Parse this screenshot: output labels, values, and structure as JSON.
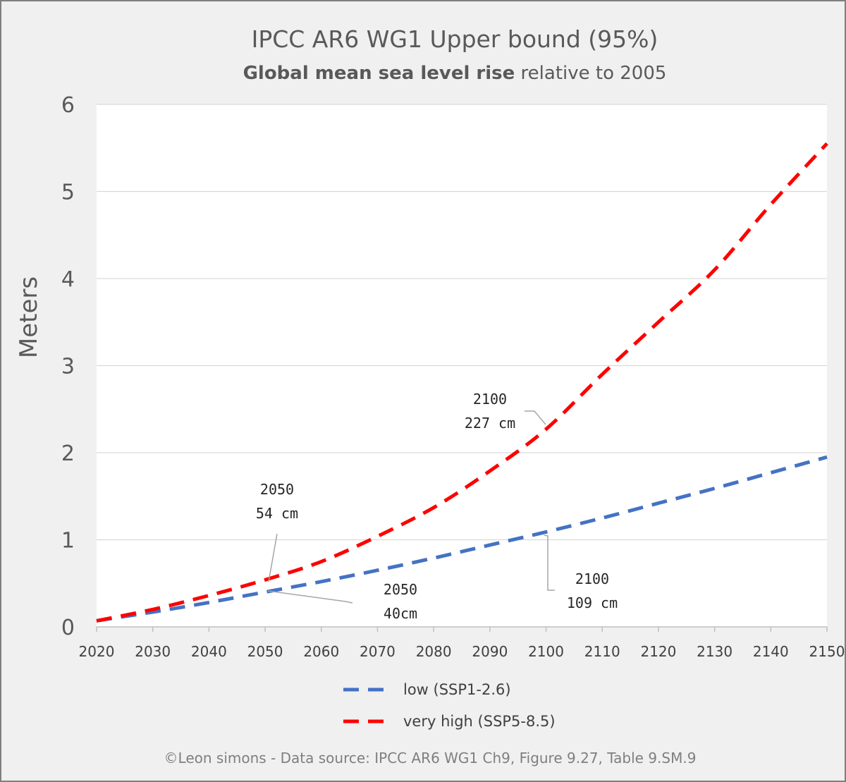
{
  "chart_data": {
    "type": "line",
    "title": "IPCC AR6 WG1 Upper bound (95%)",
    "subtitle_bold": "Global mean sea level rise",
    "subtitle_rest": " relative to 2005",
    "ylabel": "Meters",
    "xlabel": "",
    "xlim": [
      2020,
      2150
    ],
    "ylim": [
      0,
      6
    ],
    "xticks": [
      "2020",
      "2030",
      "2040",
      "2050",
      "2060",
      "2070",
      "2080",
      "2090",
      "2100",
      "2110",
      "2120",
      "2130",
      "2140",
      "2150"
    ],
    "yticks": [
      "0",
      "1",
      "2",
      "3",
      "4",
      "5",
      "6"
    ],
    "grid": true,
    "legend_position": "bottom",
    "series": [
      {
        "name": "low (SSP1-2.6)",
        "color": "#4472c4",
        "x": [
          2020,
          2030,
          2040,
          2050,
          2060,
          2070,
          2080,
          2090,
          2100,
          2110,
          2120,
          2130,
          2140,
          2150
        ],
        "values": [
          0.07,
          0.17,
          0.28,
          0.4,
          0.52,
          0.65,
          0.79,
          0.94,
          1.09,
          1.25,
          1.42,
          1.59,
          1.77,
          1.95
        ]
      },
      {
        "name": "very high (SSP5-8.5)",
        "color": "#ff0000",
        "x": [
          2020,
          2030,
          2040,
          2050,
          2060,
          2070,
          2080,
          2090,
          2100,
          2110,
          2120,
          2130,
          2140,
          2150
        ],
        "values": [
          0.07,
          0.2,
          0.36,
          0.54,
          0.75,
          1.04,
          1.37,
          1.79,
          2.27,
          2.9,
          3.5,
          4.1,
          4.85,
          5.55
        ]
      }
    ],
    "annotations": [
      {
        "line1": "2050",
        "line2": "54 cm",
        "x": 2050,
        "y": 0.54,
        "series": "very high (SSP5-8.5)"
      },
      {
        "line1": "2050",
        "line2": "40cm",
        "x": 2050,
        "y": 0.4,
        "series": "low (SSP1-2.6)"
      },
      {
        "line1": "2100",
        "line2": "227 cm",
        "x": 2100,
        "y": 2.27,
        "series": "very high (SSP5-8.5)"
      },
      {
        "line1": "2100",
        "line2": "109 cm",
        "x": 2100,
        "y": 1.09,
        "series": "low (SSP1-2.6)"
      }
    ],
    "footer": "©Leon simons - Data source: IPCC AR6 WG1 Ch9, Figure 9.27, Table 9.SM.9"
  }
}
